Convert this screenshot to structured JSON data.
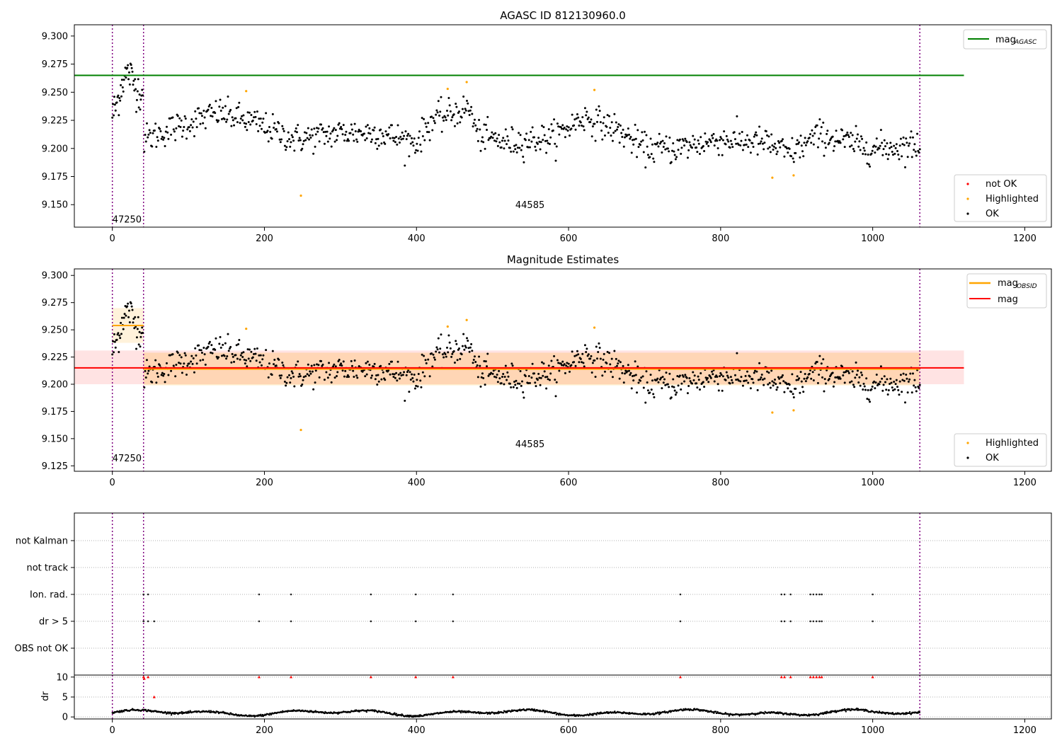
{
  "chart_data": [
    {
      "type": "scatter",
      "title": "AGASC ID 812130960.0",
      "xlim": [
        -50,
        1235
      ],
      "ylim": [
        9.13,
        9.31
      ],
      "x_ticks": [
        0,
        200,
        400,
        600,
        800,
        1000,
        1200
      ],
      "y_ticks": [
        9.15,
        9.175,
        9.2,
        9.225,
        9.25,
        9.275,
        9.3
      ],
      "obsid_boundaries": [
        0,
        41,
        1062
      ],
      "obsid_labels": [
        {
          "label": "47250",
          "x": 0,
          "y": 9.134
        },
        {
          "label": "44585",
          "x": 530,
          "y": 9.147
        }
      ],
      "lines": [
        {
          "name": "mag_AGASC",
          "y": 9.265,
          "x": [
            -50,
            1120
          ],
          "color": "#008000"
        }
      ],
      "legend_lines": {
        "position": "top-right",
        "entries": [
          {
            "name": "mag",
            "sub": "AGASC",
            "color": "#008000"
          }
        ]
      },
      "legend_points": {
        "position": "bottom-right",
        "entries": [
          {
            "name": "not OK",
            "color": "#ff0000"
          },
          {
            "name": "Highlighted",
            "color": "#ffa500"
          },
          {
            "name": "OK",
            "color": "#000000"
          }
        ]
      },
      "highlighted": [
        [
          176,
          9.251
        ],
        [
          248,
          9.158
        ],
        [
          441,
          9.253
        ],
        [
          466,
          9.259
        ],
        [
          634,
          9.252
        ],
        [
          868,
          9.174
        ],
        [
          896,
          9.176
        ]
      ],
      "ok_segments": [
        {
          "x_start": 0,
          "x_end": 40,
          "levels": [
            [
              0,
              9.23
            ],
            [
              6,
              9.24
            ],
            [
              14,
              9.262
            ],
            [
              22,
              9.268
            ],
            [
              28,
              9.258
            ],
            [
              34,
              9.252
            ],
            [
              40,
              9.248
            ]
          ],
          "noise": 0.014,
          "count": 48
        },
        {
          "x_start": 42,
          "x_end": 1062,
          "levels": [
            [
              42,
              9.208
            ],
            [
              80,
              9.218
            ],
            [
              140,
              9.232
            ],
            [
              190,
              9.222
            ],
            [
              240,
              9.208
            ],
            [
              300,
              9.214
            ],
            [
              350,
              9.214
            ],
            [
              400,
              9.205
            ],
            [
              420,
              9.225
            ],
            [
              470,
              9.236
            ],
            [
              480,
              9.212
            ],
            [
              520,
              9.205
            ],
            [
              580,
              9.21
            ],
            [
              620,
              9.228
            ],
            [
              660,
              9.218
            ],
            [
              700,
              9.2
            ],
            [
              740,
              9.2
            ],
            [
              800,
              9.208
            ],
            [
              860,
              9.205
            ],
            [
              890,
              9.195
            ],
            [
              930,
              9.212
            ],
            [
              1000,
              9.2
            ],
            [
              1062,
              9.203
            ]
          ],
          "noise": 0.011,
          "count": 900
        }
      ]
    },
    {
      "type": "scatter",
      "title": "Magnitude Estimates",
      "xlim": [
        -50,
        1235
      ],
      "ylim": [
        9.12,
        9.306
      ],
      "x_ticks": [
        0,
        200,
        400,
        600,
        800,
        1000,
        1200
      ],
      "y_ticks": [
        9.125,
        9.15,
        9.175,
        9.2,
        9.225,
        9.25,
        9.275,
        9.3
      ],
      "obsid_boundaries": [
        0,
        41,
        1062
      ],
      "obsid_labels": [
        {
          "label": "47250",
          "x": 0,
          "y": 9.129
        },
        {
          "label": "44585",
          "x": 530,
          "y": 9.142
        }
      ],
      "bands": [
        {
          "x": [
            -50,
            1120
          ],
          "y": [
            9.2,
            9.231
          ],
          "color": "#ff0000",
          "opacity": 0.11
        },
        {
          "x": [
            0,
            41
          ],
          "y": [
            9.238,
            9.27
          ],
          "color": "#ffa500",
          "opacity": 0.14
        },
        {
          "x": [
            41,
            1062
          ],
          "y": [
            9.199,
            9.229
          ],
          "color": "#ffa500",
          "opacity": 0.2
        }
      ],
      "lines": [
        {
          "name": "mag_OBSID 47250",
          "y": 9.254,
          "x": [
            0,
            41
          ],
          "color": "#ffa500"
        },
        {
          "name": "mag_OBSID 44585",
          "y": 9.214,
          "x": [
            41,
            1062
          ],
          "color": "#ffa500"
        },
        {
          "name": "mag",
          "y": 9.215,
          "x": [
            -50,
            1120
          ],
          "color": "#ff0000"
        }
      ],
      "legend_lines": {
        "position": "top-right",
        "entries": [
          {
            "name": "mag",
            "sub": "OBSID",
            "color": "#ffa500"
          },
          {
            "name": "mag",
            "sub": "",
            "color": "#ff0000"
          }
        ]
      },
      "legend_points": {
        "position": "bottom-right",
        "entries": [
          {
            "name": "Highlighted",
            "color": "#ffa500"
          },
          {
            "name": "OK",
            "color": "#000000"
          }
        ]
      },
      "highlighted": [
        [
          176,
          9.251
        ],
        [
          248,
          9.158
        ],
        [
          441,
          9.253
        ],
        [
          466,
          9.259
        ],
        [
          634,
          9.252
        ],
        [
          868,
          9.174
        ],
        [
          896,
          9.176
        ]
      ],
      "ok_segments": "same as panel 1"
    },
    {
      "type": "scatter",
      "title": "",
      "xlim": [
        -50,
        1235
      ],
      "categories": [
        "not Kalman",
        "not track",
        "Ion. rad.",
        "dr > 5",
        "OBS not OK"
      ],
      "ion_rad_x": [
        41,
        47,
        193,
        235,
        340,
        399,
        448,
        747,
        880,
        884,
        892,
        918,
        922,
        926,
        930,
        933,
        1000
      ],
      "dr_gt5_x": [
        41,
        47,
        55,
        193,
        235,
        340,
        399,
        448,
        747,
        880,
        884,
        892,
        918,
        922,
        926,
        930,
        933,
        1000
      ],
      "obsid_boundaries": [
        0,
        41,
        1062
      ]
    },
    {
      "type": "scatter",
      "title": "",
      "ylabel": "dr",
      "xlim": [
        -50,
        1235
      ],
      "ylim": [
        -0.5,
        10.5
      ],
      "x_ticks": [
        0,
        200,
        400,
        600,
        800,
        1000,
        1200
      ],
      "y_ticks": [
        0,
        5,
        10
      ],
      "outliers": [
        [
          41,
          10
        ],
        [
          42,
          9.6
        ],
        [
          47,
          10
        ],
        [
          55,
          5
        ],
        [
          193,
          10
        ],
        [
          235,
          10
        ],
        [
          340,
          10
        ],
        [
          399,
          10
        ],
        [
          448,
          10
        ],
        [
          747,
          10
        ],
        [
          880,
          10
        ],
        [
          884,
          10
        ],
        [
          892,
          10
        ],
        [
          918,
          10
        ],
        [
          922,
          10
        ],
        [
          926,
          10
        ],
        [
          930,
          10
        ],
        [
          933,
          10
        ],
        [
          1000,
          10
        ]
      ],
      "baseline": {
        "min": 0.2,
        "max": 1.9
      },
      "obsid_boundaries": [
        0,
        41,
        1062
      ]
    }
  ]
}
